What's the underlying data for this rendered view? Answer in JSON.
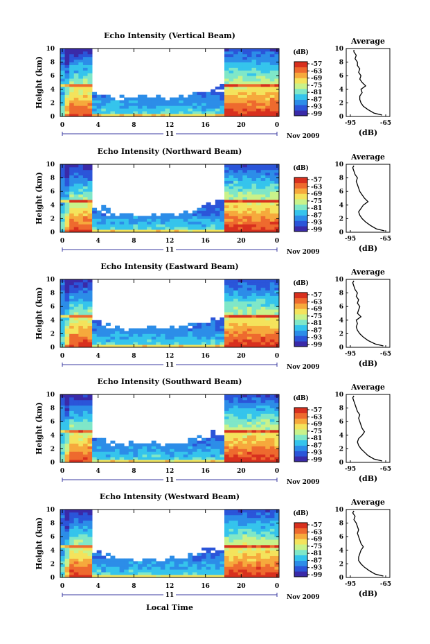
{
  "colorbar_ticks": [
    "-57",
    "-63",
    "-69",
    "-75",
    "-81",
    "-87",
    "-93",
    "-99"
  ],
  "colorbar_unit": "(dB)",
  "time_ticks": [
    "0",
    "4",
    "8",
    "12",
    "16",
    "20",
    "0"
  ],
  "height_ticks": [
    "0",
    "2",
    "4",
    "6",
    "8",
    "10"
  ],
  "ylabel": "Height (km)",
  "date_day": "11",
  "date_month_year": "Nov 2009",
  "xlabel": "Local Time",
  "avg_title": "Average",
  "avg_xticks": [
    "-95",
    "-65"
  ],
  "avg_xlabel": "(dB)",
  "colors": {
    "scale": [
      "#3a2aa8",
      "#2b55d9",
      "#2c8de8",
      "#35c4ec",
      "#7fe7c8",
      "#c9f28a",
      "#f4e35c",
      "#f6a93c",
      "#ee6a2e",
      "#d8301e"
    ],
    "missing": "#ffffff"
  },
  "chart_data": [
    {
      "type": "heatmap",
      "title": "Echo Intensity (Vertical Beam)",
      "xlim": [
        0,
        24
      ],
      "ylim": [
        0,
        10
      ],
      "zlim": [
        -99,
        -57
      ],
      "grid": false,
      "average_profile": {
        "type": "line",
        "title": "Average",
        "xlim": [
          -95,
          -65
        ],
        "ylim": [
          0,
          10
        ],
        "height": [
          0.2,
          0.5,
          1.0,
          1.5,
          2.0,
          2.5,
          3.0,
          3.5,
          4.0,
          4.5,
          5.0,
          5.5,
          6.0,
          6.5,
          7.0,
          7.5,
          8.0,
          8.5,
          9.0,
          9.5,
          9.8
        ],
        "value": [
          -68,
          -75,
          -80,
          -84,
          -86,
          -87,
          -87,
          -85,
          -86,
          -82,
          -85,
          -87,
          -86,
          -88,
          -87,
          -89,
          -89,
          -91,
          -90,
          -92,
          -92
        ]
      }
    },
    {
      "type": "heatmap",
      "title": "Echo Intensity (Northward Beam)",
      "xlim": [
        0,
        24
      ],
      "ylim": [
        0,
        10
      ],
      "zlim": [
        -99,
        -57
      ],
      "grid": false,
      "average_profile": {
        "type": "line",
        "title": "Average",
        "xlim": [
          -95,
          -65
        ],
        "ylim": [
          0,
          10
        ],
        "height": [
          0.2,
          0.5,
          1.0,
          1.5,
          2.0,
          2.5,
          3.0,
          3.5,
          4.0,
          4.5,
          5.0,
          5.5,
          6.0,
          6.5,
          7.0,
          7.5,
          8.0,
          8.5,
          9.0,
          9.5,
          9.8
        ],
        "value": [
          -66,
          -73,
          -78,
          -82,
          -85,
          -87,
          -88,
          -86,
          -84,
          -80,
          -83,
          -85,
          -87,
          -88,
          -89,
          -90,
          -89,
          -91,
          -92,
          -93,
          -92
        ]
      }
    },
    {
      "type": "heatmap",
      "title": "Echo Intensity (Eastward Beam)",
      "xlim": [
        0,
        24
      ],
      "ylim": [
        0,
        10
      ],
      "zlim": [
        -99,
        -57
      ],
      "grid": false,
      "average_profile": {
        "type": "line",
        "title": "Average",
        "xlim": [
          -95,
          -65
        ],
        "ylim": [
          0,
          10
        ],
        "height": [
          0.2,
          0.5,
          1.0,
          1.5,
          2.0,
          2.5,
          3.0,
          3.5,
          4.0,
          4.5,
          5.0,
          5.5,
          6.0,
          6.5,
          7.0,
          7.5,
          8.0,
          8.5,
          9.0,
          9.5,
          9.8
        ],
        "value": [
          -67,
          -74,
          -80,
          -84,
          -87,
          -89,
          -90,
          -89,
          -90,
          -86,
          -89,
          -88,
          -87,
          -89,
          -88,
          -90,
          -89,
          -91,
          -92,
          -93,
          -92
        ]
      }
    },
    {
      "type": "heatmap",
      "title": "Echo Intensity (Southward Beam)",
      "xlim": [
        0,
        24
      ],
      "ylim": [
        0,
        10
      ],
      "zlim": [
        -99,
        -57
      ],
      "grid": false,
      "average_profile": {
        "type": "line",
        "title": "Average",
        "xlim": [
          -95,
          -65
        ],
        "ylim": [
          0,
          10
        ],
        "height": [
          0.2,
          0.5,
          1.0,
          1.5,
          2.0,
          2.5,
          3.0,
          3.5,
          4.0,
          4.5,
          5.0,
          5.5,
          6.0,
          6.5,
          7.0,
          7.5,
          8.0,
          8.5,
          9.0,
          9.5,
          9.8
        ],
        "value": [
          -68,
          -75,
          -80,
          -83,
          -86,
          -88,
          -89,
          -88,
          -85,
          -83,
          -85,
          -86,
          -87,
          -88,
          -87,
          -89,
          -90,
          -91,
          -92,
          -93,
          -92
        ]
      }
    },
    {
      "type": "heatmap",
      "title": "Echo Intensity (Westward Beam)",
      "xlim": [
        0,
        24
      ],
      "ylim": [
        0,
        10
      ],
      "zlim": [
        -99,
        -57
      ],
      "grid": false,
      "average_profile": {
        "type": "line",
        "title": "Average",
        "xlim": [
          -95,
          -65
        ],
        "ylim": [
          0,
          10
        ],
        "height": [
          0.2,
          0.5,
          1.0,
          1.5,
          2.0,
          2.5,
          3.0,
          3.5,
          4.0,
          4.5,
          5.0,
          5.5,
          6.0,
          6.5,
          7.0,
          7.5,
          8.0,
          8.5,
          9.0,
          9.5,
          9.8
        ],
        "value": [
          -67,
          -74,
          -79,
          -83,
          -86,
          -88,
          -88,
          -87,
          -86,
          -84,
          -86,
          -87,
          -88,
          -89,
          -88,
          -89,
          -90,
          -92,
          -91,
          -93,
          -92
        ]
      }
    }
  ]
}
